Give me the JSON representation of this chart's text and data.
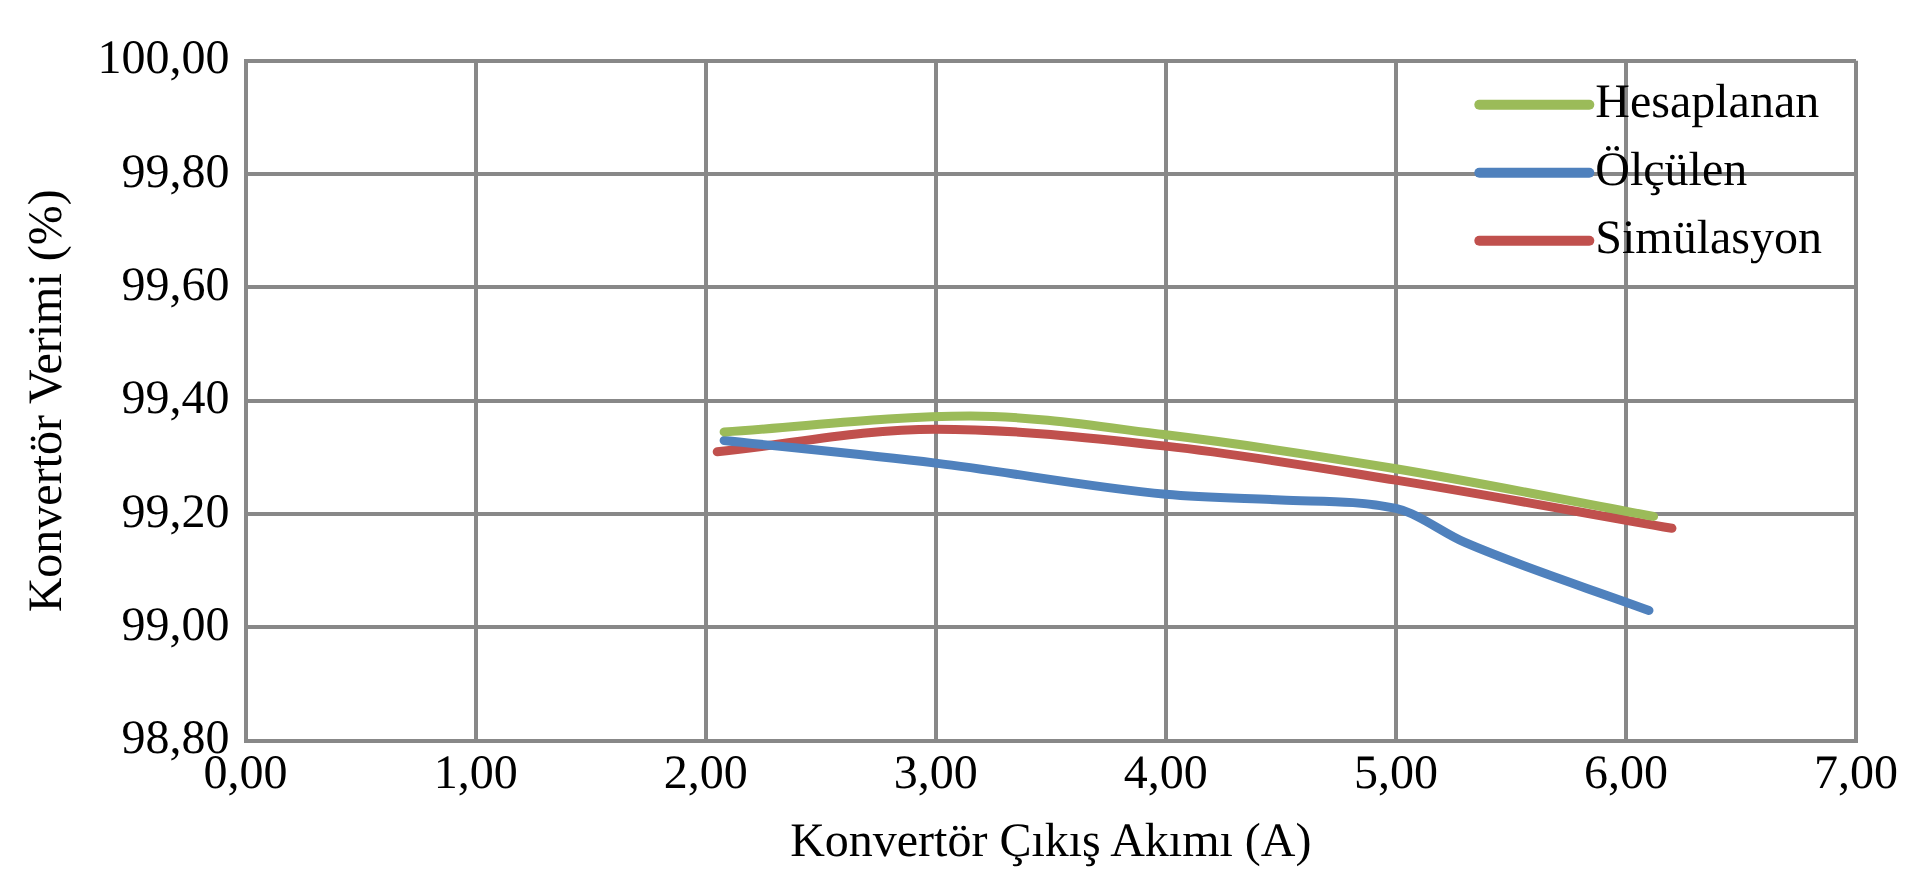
{
  "chart_data": {
    "type": "line",
    "xlabel": "Konvertör Çıkış Akımı (A)",
    "ylabel": "Konvertör Verimi (%)",
    "xlim": [
      0,
      7
    ],
    "xticks": [
      {
        "value": 0,
        "label": "0,00"
      },
      {
        "value": 1,
        "label": "1,00"
      },
      {
        "value": 2,
        "label": "2,00"
      },
      {
        "value": 3,
        "label": "3,00"
      },
      {
        "value": 4,
        "label": "4,00"
      },
      {
        "value": 5,
        "label": "5,00"
      },
      {
        "value": 6,
        "label": "6,00"
      },
      {
        "value": 7,
        "label": "7,00"
      }
    ],
    "ylim": [
      98.8,
      100
    ],
    "yticks": [
      {
        "value": 98.8,
        "label": "98,80"
      },
      {
        "value": 99,
        "label": "99,00"
      },
      {
        "value": 99.2,
        "label": "99,20"
      },
      {
        "value": 99.4,
        "label": "99,40"
      },
      {
        "value": 99.6,
        "label": "99,60"
      },
      {
        "value": 99.8,
        "label": "99,80"
      },
      {
        "value": 100,
        "label": "100,00"
      }
    ],
    "grid": true,
    "legend": "top right",
    "marker": "none",
    "line_style": "solid",
    "series": [
      {
        "name": "Hesaplanan",
        "color": "#9bbb59",
        "x": [
          2.08,
          3.15,
          4,
          5,
          6.12
        ],
        "values": [
          99.345,
          99.373,
          99.34,
          99.28,
          99.196
        ]
      },
      {
        "name": "Ölçülen",
        "color": "#4f81bd",
        "x": [
          2.08,
          3,
          4,
          4.5,
          5,
          5.3,
          6.1
        ],
        "values": [
          99.33,
          99.29,
          99.235,
          99.225,
          99.21,
          99.15,
          99.03
        ]
      },
      {
        "name": "Simülasyon",
        "color": "#c0504d",
        "x": [
          2.05,
          3,
          4,
          5,
          6.2
        ],
        "values": [
          99.31,
          99.35,
          99.32,
          99.26,
          99.175
        ]
      }
    ]
  }
}
